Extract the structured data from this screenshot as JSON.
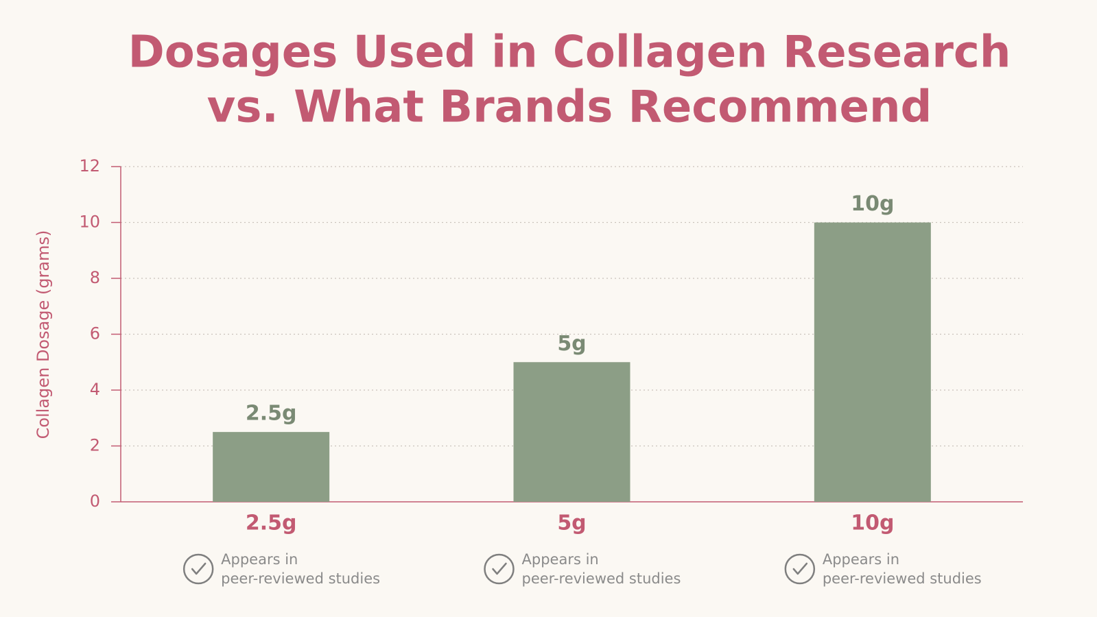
{
  "chart_data": {
    "type": "bar",
    "title": [
      "Dosages Used in Collagen Research",
      "vs. What Brands Recommend"
    ],
    "y_label": "Collagen Dosage (grams)",
    "categories": [
      "2.5g",
      "5g",
      "10g"
    ],
    "values": [
      2.5,
      5,
      10
    ],
    "value_labels": [
      "2.5g",
      "5g",
      "10g"
    ],
    "notes": [
      [
        "Appears in",
        "peer-reviewed studies"
      ],
      [
        "Appears in",
        "peer-reviewed studies"
      ],
      [
        "Appears in",
        "peer-reviewed studies"
      ]
    ],
    "color": "#8c9e86",
    "ylim": [
      0,
      12
    ],
    "yticks": [
      0,
      2,
      4,
      6,
      8,
      10,
      12
    ],
    "grid": true
  }
}
